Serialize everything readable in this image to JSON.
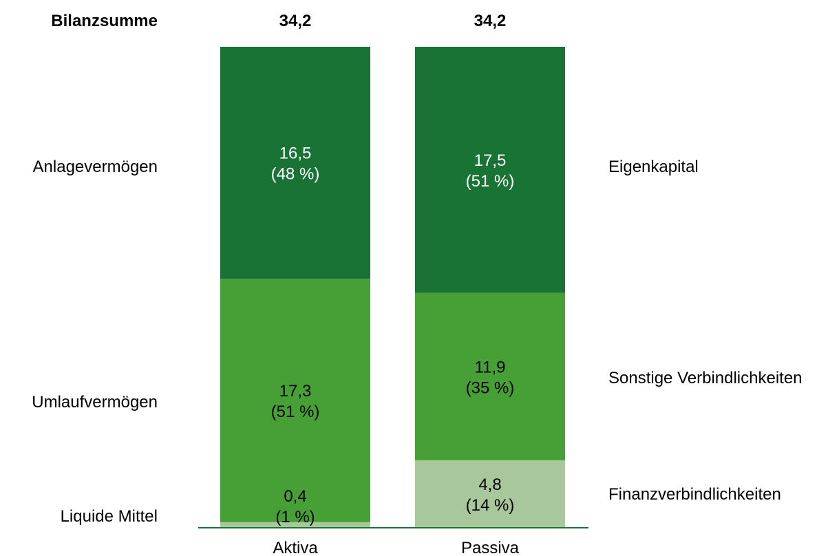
{
  "chart_data": {
    "type": "bar",
    "stacked": true,
    "categories": [
      "Aktiva",
      "Passiva"
    ],
    "header_label": "Bilanzsumme",
    "totals": [
      "34,2",
      "34,2"
    ],
    "total_values": [
      34.2,
      34.2
    ],
    "colors": {
      "dark_green": "#187335",
      "mid_green": "#47a035",
      "light_green": "#a8c89c",
      "axis_line": "#187335"
    },
    "stacks": [
      {
        "category": "Aktiva",
        "segments": [
          {
            "name": "Liquide Mittel",
            "value": 0.4,
            "value_label": "0,4",
            "share_label": "(1 %)",
            "color": "#a8c89c",
            "text_color": "#000000"
          },
          {
            "name": "Umlaufvermögen",
            "value": 17.3,
            "value_label": "17,3",
            "share_label": "(51 %)",
            "color": "#47a035",
            "text_color": "#000000"
          },
          {
            "name": "Anlagevermögen",
            "value": 16.5,
            "value_label": "16,5",
            "share_label": "(48 %)",
            "color": "#187335",
            "text_color": "#ffffff"
          }
        ]
      },
      {
        "category": "Passiva",
        "segments": [
          {
            "name": "Finanzverbindlichkeiten",
            "value": 4.8,
            "value_label": "4,8",
            "share_label": "(14 %)",
            "color": "#a8c89c",
            "text_color": "#000000"
          },
          {
            "name": "Sonstige Verbindlichkeiten",
            "value": 11.9,
            "value_label": "11,9",
            "share_label": "(35 %)",
            "color": "#47a035",
            "text_color": "#000000"
          },
          {
            "name": "Eigenkapital",
            "value": 17.5,
            "value_label": "17,5",
            "share_label": "(51 %)",
            "color": "#187335",
            "text_color": "#ffffff"
          }
        ]
      }
    ],
    "left_labels": [
      "Anlagevermögen",
      "Umlaufvermögen",
      "Liquide Mittel"
    ],
    "right_labels": [
      "Eigenkapital",
      "Sonstige Verbindlichkeiten",
      "Finanzverbindlichkeiten"
    ]
  }
}
